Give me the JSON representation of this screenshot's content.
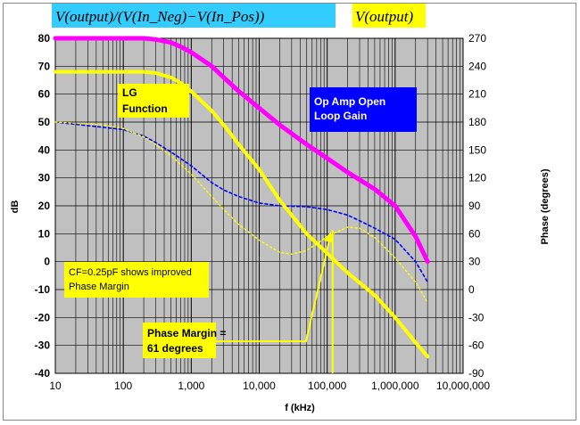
{
  "header": {
    "left_label": "V(output)/(V(In_Neg)−V(In_Pos))",
    "right_label": "V(output)",
    "left_bg": "#33ccff",
    "right_bg": "#ffff00"
  },
  "annotations": {
    "lg_function": [
      "LG",
      "Function"
    ],
    "op_amp": [
      "Op Amp Open",
      "Loop Gain"
    ],
    "cf_note": [
      "CF=0.25pF shows improved",
      "Phase Margin"
    ],
    "phase_margin": [
      "Phase Margin =",
      "61 degrees"
    ]
  },
  "chart_data": {
    "type": "line",
    "title": "",
    "xlabel": "f (kHz)",
    "ylabel": "dB",
    "y2label": "Phase (degrees)",
    "xscale": "log",
    "xlim": [
      10,
      10000000
    ],
    "ylim": [
      -40,
      80
    ],
    "y2lim": [
      -90,
      270
    ],
    "xticks": [
      "10",
      "100",
      "1,000",
      "10,000",
      "100,000",
      "1,000,000",
      "10,000,000"
    ],
    "yticks": [
      "80",
      "70",
      "60",
      "50",
      "40",
      "30",
      "20",
      "10",
      "0",
      "-10",
      "-20",
      "-30",
      "-40"
    ],
    "y2ticks": [
      "270",
      "240",
      "210",
      "180",
      "150",
      "120",
      "90",
      "60",
      "30",
      "0",
      "-30",
      "-60",
      "-90"
    ],
    "grid": true,
    "plot_bg": "#c0c0c0",
    "series": [
      {
        "name": "Op Amp Open Loop Gain",
        "axis": "left",
        "style": "solid",
        "color": "#ff00ff",
        "x": [
          10,
          100,
          200,
          300,
          500,
          700,
          1000,
          2000,
          3000,
          5000,
          10000,
          20000,
          50000,
          100000,
          200000,
          500000,
          1000000,
          2000000,
          3000000
        ],
        "y": [
          80,
          80,
          80,
          79.6,
          78.5,
          77,
          75,
          70,
          66,
          61,
          55,
          49,
          42,
          37,
          32,
          26,
          20,
          9,
          0
        ]
      },
      {
        "name": "LG Function",
        "axis": "left",
        "style": "solid",
        "color": "#ffff00",
        "x": [
          10,
          100,
          200,
          300,
          500,
          700,
          1000,
          2000,
          3000,
          5000,
          10000,
          20000,
          50000,
          100000,
          200000,
          500000,
          1000000,
          2000000,
          3000000
        ],
        "y": [
          68,
          68,
          68,
          67.6,
          66,
          64,
          61,
          54,
          49,
          42,
          33,
          22,
          10,
          3,
          -4,
          -12,
          -20,
          -29,
          -34
        ]
      },
      {
        "name": "Phase (CF=0.25pF)",
        "axis": "right",
        "style": "dotted",
        "color": "#ffff00",
        "x": [
          10,
          50,
          100,
          200,
          300,
          500,
          1000,
          2000,
          3000,
          5000,
          10000,
          20000,
          30000,
          50000,
          100000,
          150000,
          200000,
          300000,
          500000,
          1000000,
          2000000,
          3000000
        ],
        "y": [
          180,
          177,
          173,
          164,
          156,
          144,
          124,
          100,
          86,
          70,
          53,
          40,
          38,
          42,
          57,
          63,
          67,
          66,
          56,
          34,
          8,
          -14
        ]
      },
      {
        "name": "Phase",
        "axis": "right",
        "style": "dashed",
        "color": "#0000ff",
        "x": [
          10,
          100,
          200,
          300,
          500,
          1000,
          2000,
          3000,
          5000,
          10000,
          20000,
          50000,
          100000,
          200000,
          300000,
          500000,
          1000000,
          2000000,
          3000000
        ],
        "y": [
          180,
          172,
          165,
          158,
          148,
          133,
          115,
          107,
          100,
          93,
          90,
          89,
          86,
          80,
          74,
          66,
          54,
          30,
          8
        ]
      }
    ],
    "markers": {
      "pm_line_x": 120000,
      "pm_line_color": "#ffff00"
    }
  }
}
